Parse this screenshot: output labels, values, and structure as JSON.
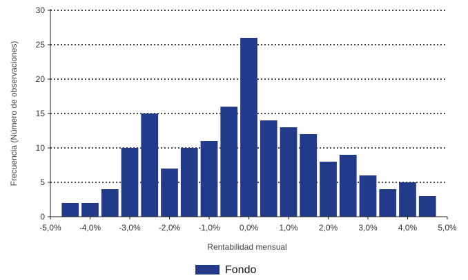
{
  "chart_data": {
    "type": "bar",
    "xlabel": "Rentabilidad mensual",
    "ylabel": "Frecuencia (Número de observaciones)",
    "xlim": [
      -5.0,
      5.0
    ],
    "ylim": [
      0,
      30
    ],
    "x_ticks": [
      -5.0,
      -4.0,
      -3.0,
      -2.0,
      -1.0,
      0.0,
      1.0,
      2.0,
      3.0,
      4.0,
      5.0
    ],
    "x_tick_labels": [
      "-5,0%",
      "-4,0%",
      "-3,0%",
      "-2,0%",
      "-1,0%",
      "0,0%",
      "1,0%",
      "2,0%",
      "3,0%",
      "4,0%",
      "5,0%"
    ],
    "y_ticks": [
      0,
      5,
      10,
      15,
      20,
      25,
      30
    ],
    "y_tick_labels": [
      "0",
      "5",
      "10",
      "15",
      "20",
      "25",
      "30"
    ],
    "bin_width": 0.5,
    "grid": "horizontal-dotted",
    "legend_position": "bottom-center",
    "series": [
      {
        "name": "Fondo",
        "color": "#223a8a",
        "x": [
          -4.5,
          -4.0,
          -3.5,
          -3.0,
          -2.5,
          -2.0,
          -1.5,
          -1.0,
          -0.5,
          0.0,
          0.5,
          1.0,
          1.5,
          2.0,
          2.5,
          3.0,
          3.5,
          4.0,
          4.5
        ],
        "values": [
          2,
          2,
          4,
          10,
          15,
          7,
          10,
          11,
          16,
          26,
          14,
          13,
          12,
          8,
          9,
          6,
          4,
          5,
          3
        ]
      }
    ]
  }
}
